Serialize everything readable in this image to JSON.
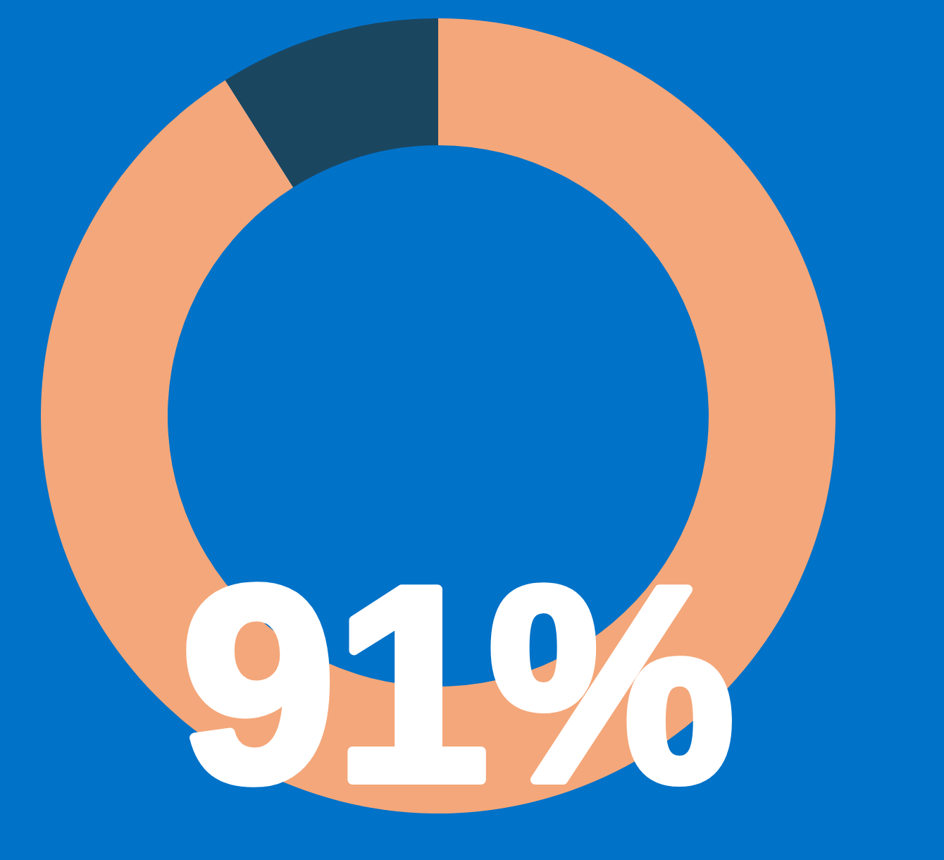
{
  "chart_data": {
    "type": "donut",
    "categories": [
      null,
      null
    ],
    "values": [
      91,
      9
    ],
    "colors": [
      "#f4a77a",
      "#1b4660"
    ],
    "value_labels": [
      "91%",
      null
    ]
  }
}
